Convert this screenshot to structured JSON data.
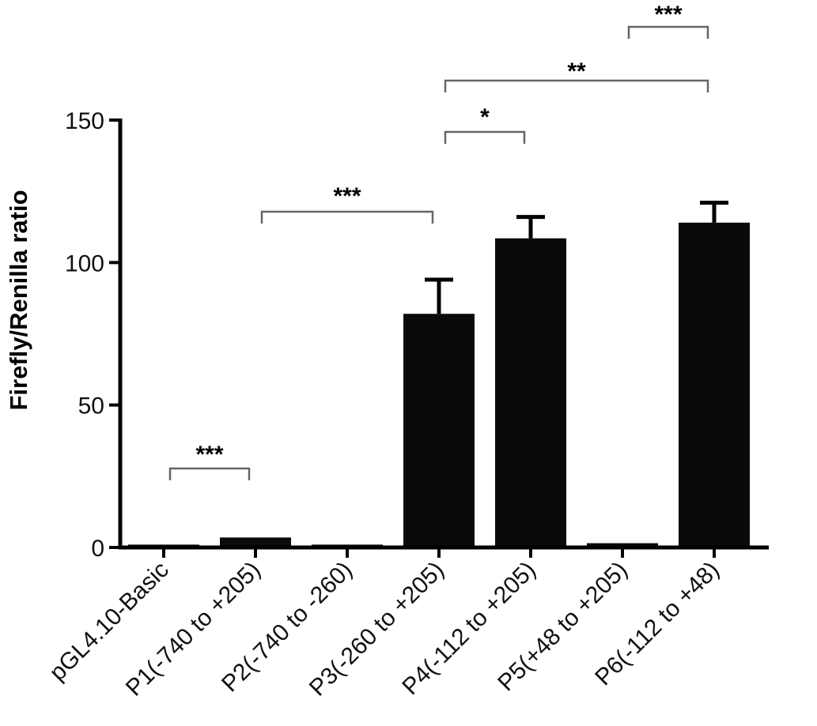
{
  "chart_data": {
    "type": "bar",
    "title": "",
    "xlabel": "",
    "ylabel": "Firefly/Renilla ratio",
    "ylim": [
      0,
      150
    ],
    "yticks": [
      0,
      50,
      100,
      150
    ],
    "categories": [
      "pGL4.10-Basic",
      "P1(-740 to +205)",
      "P2(-740 to -260)",
      "P3(-260 to +205)",
      "P4(-112 to +205)",
      "P5(+48 to +205)",
      "P6(-112 to +48)"
    ],
    "values": [
      1,
      3.5,
      1,
      82,
      108.5,
      1.5,
      114
    ],
    "errors": [
      0,
      0.3,
      0,
      12,
      7.5,
      0.2,
      7
    ],
    "significance": [
      {
        "from": 0,
        "to": 1,
        "label": "***"
      },
      {
        "from": 1,
        "to": 3,
        "label": "***"
      },
      {
        "from": 3,
        "to": 4,
        "label": "*"
      },
      {
        "from": 3,
        "to": 6,
        "label": "**"
      },
      {
        "from": 5,
        "to": 6,
        "label": "***"
      }
    ],
    "grid": false,
    "bar_color": "#0a0a0a"
  }
}
